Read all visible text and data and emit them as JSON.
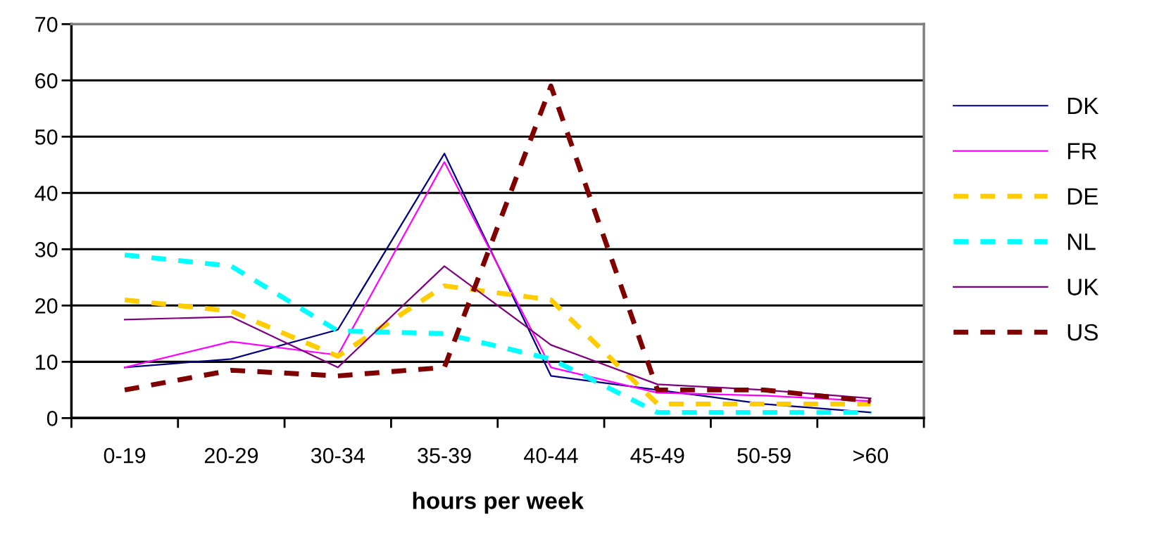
{
  "chart_data": {
    "type": "line",
    "xlabel": "hours per week",
    "categories": [
      "0-19",
      "20-29",
      "30-34",
      "35-39",
      "40-44",
      "45-49",
      "50-59",
      ">60"
    ],
    "series": [
      {
        "name": "DK",
        "color": "#000080",
        "line_style": "solid",
        "values": [
          9,
          10.5,
          15.7,
          47,
          7.5,
          5,
          2.5,
          1
        ]
      },
      {
        "name": "FR",
        "color": "#ff00ff",
        "line_style": "solid",
        "values": [
          9,
          13.6,
          11.2,
          45.5,
          9,
          4.5,
          4,
          3
        ]
      },
      {
        "name": "DE",
        "color": "#ffcc00",
        "line_style": "dashed",
        "values": [
          21,
          19,
          11,
          23.5,
          21,
          2.5,
          2.5,
          2.5
        ]
      },
      {
        "name": "NL",
        "color": "#00ffff",
        "line_style": "dashed",
        "values": [
          29,
          27,
          15.5,
          15,
          10.5,
          1,
          1,
          1
        ]
      },
      {
        "name": "UK",
        "color": "#800080",
        "line_style": "solid",
        "values": [
          17.5,
          18,
          9,
          27,
          13,
          6,
          5,
          3.5
        ]
      },
      {
        "name": "US",
        "color": "#800000",
        "line_style": "dashed",
        "values": [
          5,
          8.5,
          7.5,
          9,
          59,
          5,
          5,
          3
        ]
      }
    ],
    "ylim": [
      0,
      70
    ],
    "yticks": [
      0,
      10,
      20,
      30,
      40,
      50,
      60,
      70
    ],
    "grid": "y",
    "legend": "right"
  }
}
